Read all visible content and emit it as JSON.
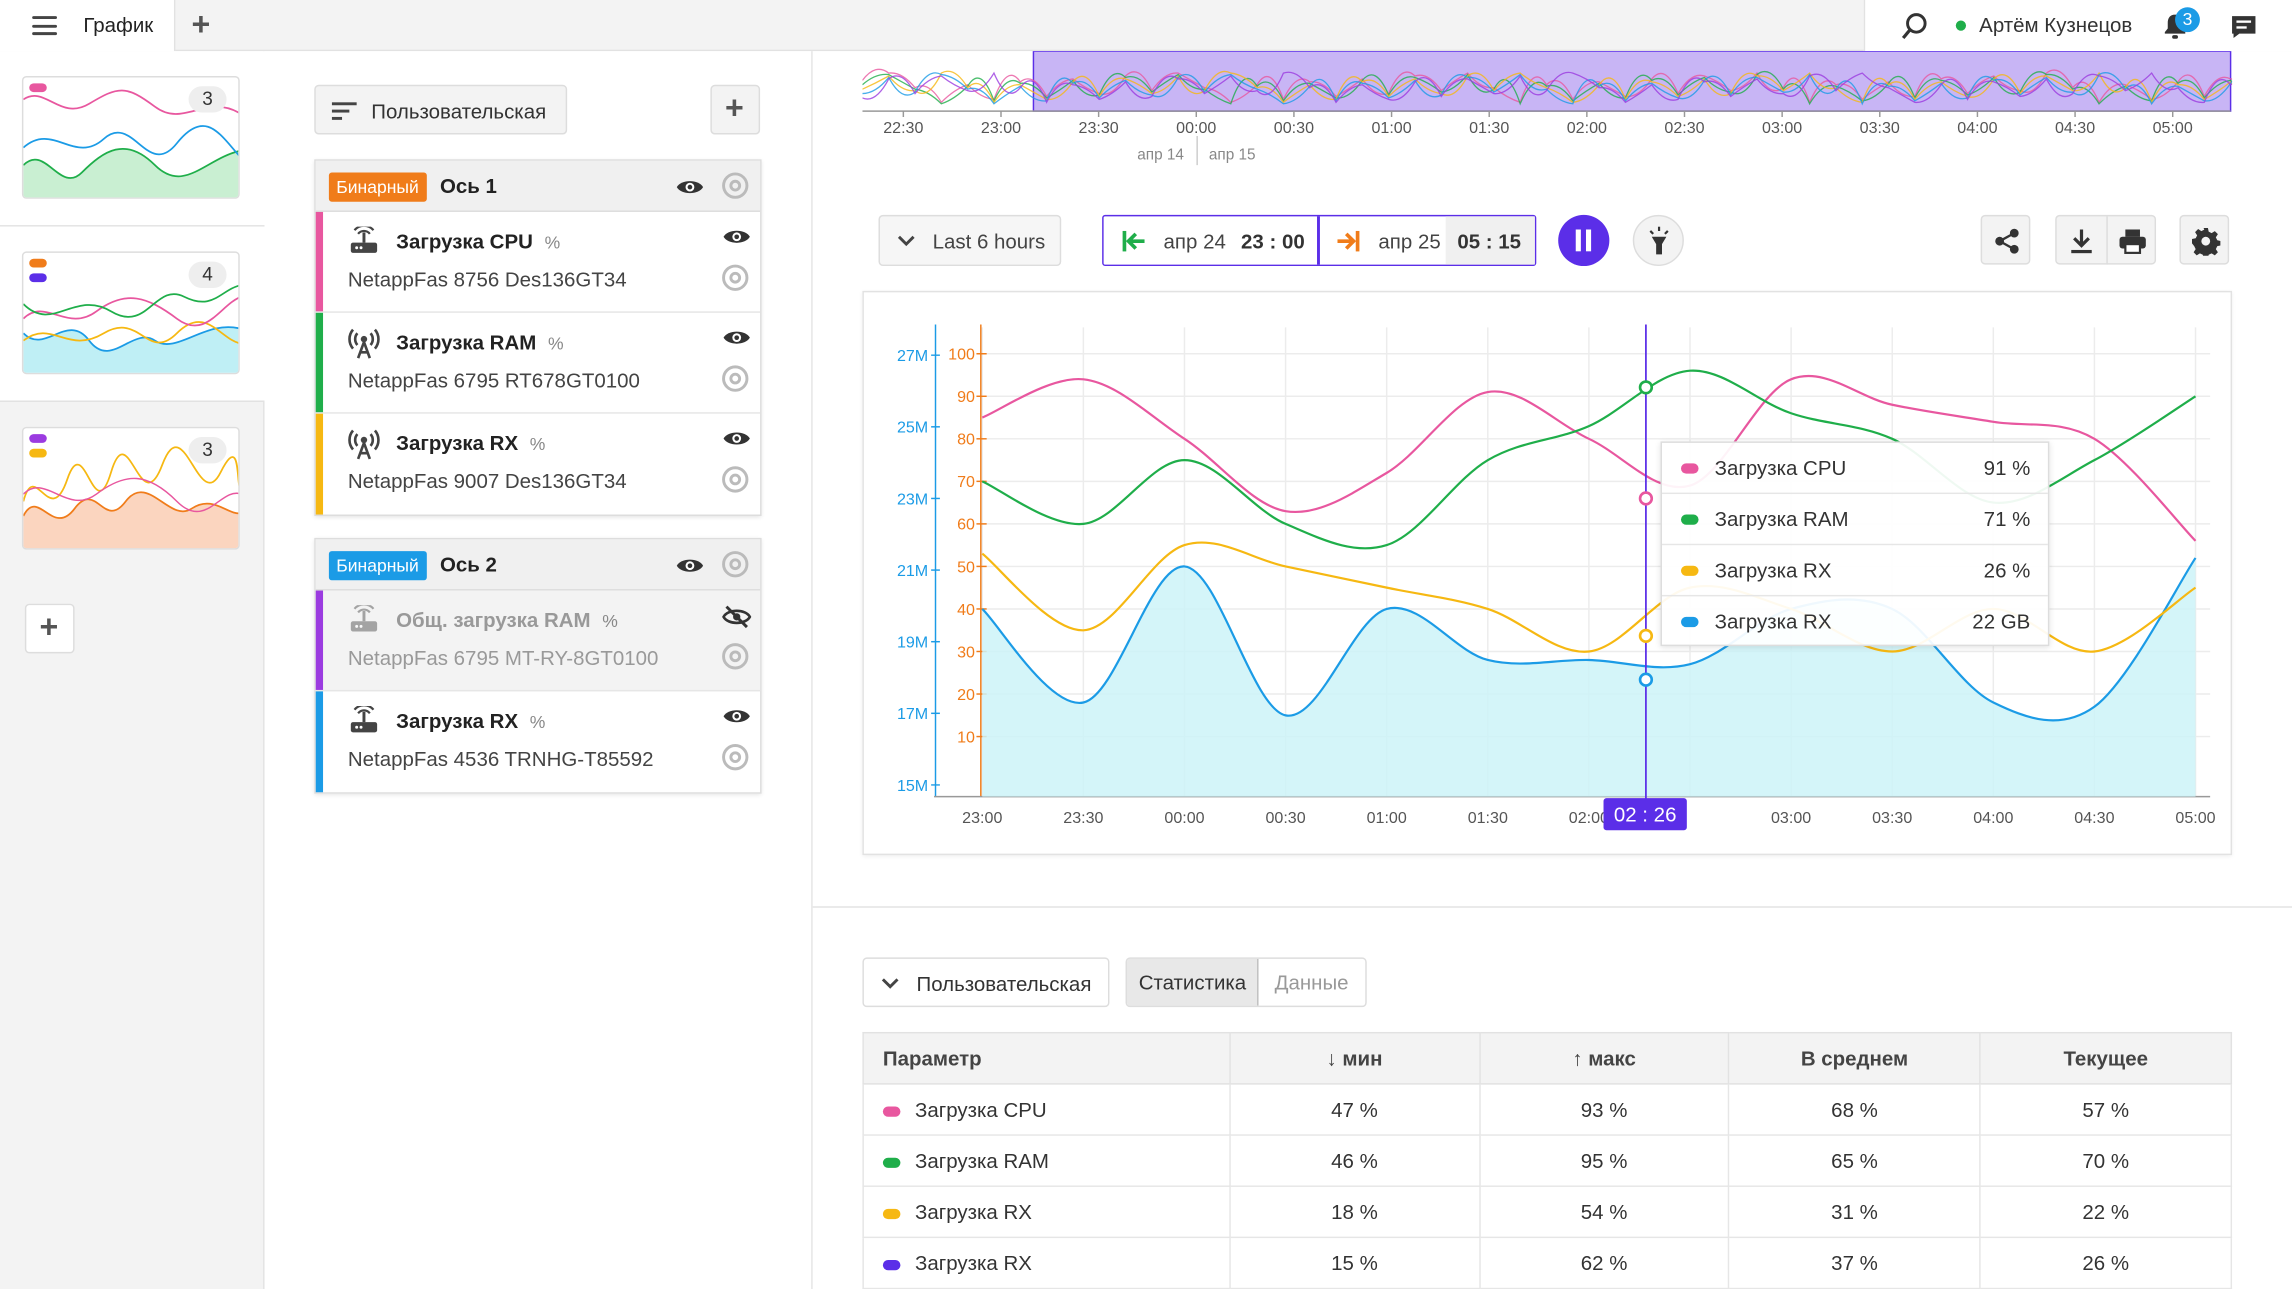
{
  "header": {
    "tab_title": "График",
    "user_name": "Артём Кузнецов",
    "notifications": "3"
  },
  "thumbs": [
    {
      "count": "3"
    },
    {
      "count": "4"
    },
    {
      "count": "3"
    }
  ],
  "legend_panel": {
    "preset_label": "Пользовательская"
  },
  "axes": [
    {
      "badge": "Бинарный",
      "badge_color": "#f07c1a",
      "title": "Ось 1",
      "items": [
        {
          "name": "Загрузка CPU",
          "unit": "%",
          "source": "NetappFas 8756 Des136GT34",
          "color": "#e8579f",
          "icon": "router-icon",
          "visible": true
        },
        {
          "name": "Загрузка RAM",
          "unit": "%",
          "source": "NetappFas 6795 RT678GT0100",
          "color": "#1fae4a",
          "icon": "antenna-icon",
          "visible": true
        },
        {
          "name": "Загрузка RX",
          "unit": "%",
          "source": "NetappFas 9007 Des136GT34",
          "color": "#f6b812",
          "icon": "antenna-icon",
          "visible": true
        }
      ]
    },
    {
      "badge": "Бинарный",
      "badge_color": "#1b9be6",
      "title": "Ось 2",
      "items": [
        {
          "name": "Общ. загрузка RAM",
          "unit": "%",
          "source": "NetappFas 6795 MT-RY-8GT0100",
          "color": "#9b3be0",
          "icon": "router-icon",
          "visible": false
        },
        {
          "name": "Загрузка RX",
          "unit": "%",
          "source": "NetappFas 4536 TRNHG-T85592",
          "color": "#1b9be6",
          "icon": "router-icon",
          "visible": true
        }
      ]
    }
  ],
  "overview": {
    "ticks": [
      "22:30",
      "23:00",
      "23:30",
      "00:00",
      "00:30",
      "01:00",
      "01:30",
      "02:00",
      "02:30",
      "03:00",
      "03:30",
      "04:00",
      "04:30",
      "05:00"
    ],
    "date_left": "апр 14",
    "date_right": "апр 15"
  },
  "controls": {
    "range_label": "Last 6 hours",
    "from_date": "апр 24",
    "from_time": "23 : 00",
    "to_date": "апр 25",
    "to_time": "05 : 15",
    "accent": "#5b2ee8"
  },
  "chart_data": {
    "type": "line",
    "x": [
      "23:00",
      "23:30",
      "00:00",
      "00:30",
      "01:00",
      "01:30",
      "02:00",
      "02:30",
      "03:00",
      "03:30",
      "04:00",
      "04:30",
      "05:00"
    ],
    "left_axis_outer": {
      "ticks": [
        "27M",
        "25M",
        "23M",
        "21M",
        "19M",
        "17M",
        "15M"
      ],
      "color": "#1b9be6"
    },
    "left_axis_inner": {
      "ticks": [
        "100",
        "90",
        "80",
        "70",
        "60",
        "50",
        "40",
        "30",
        "20",
        "10"
      ],
      "color": "#f07c1a",
      "ylim": [
        0,
        100
      ]
    },
    "series": [
      {
        "name": "Загрузка CPU",
        "color": "#e8579f",
        "values": [
          85,
          94,
          80,
          63,
          72,
          91,
          80,
          69,
          94,
          88,
          84,
          80,
          56
        ]
      },
      {
        "name": "Загрузка RAM",
        "color": "#1fae4a",
        "values": [
          70,
          60,
          75,
          60,
          55,
          75,
          83,
          96,
          86,
          80,
          65,
          75,
          90
        ]
      },
      {
        "name": "Загрузка RX",
        "color": "#f6b812",
        "values": [
          53,
          35,
          55,
          50,
          45,
          40,
          30,
          45,
          40,
          30,
          40,
          30,
          45
        ]
      },
      {
        "name": "Загрузка RX",
        "color": "#1b9be6",
        "values": [
          40,
          18,
          50,
          15,
          40,
          28,
          28,
          27,
          40,
          40,
          18,
          17,
          52
        ]
      }
    ],
    "cursor": {
      "label": "02 : 26",
      "x": "02:26"
    },
    "tooltip": [
      {
        "name": "Загрузка CPU",
        "value": "91 %",
        "color": "#e8579f"
      },
      {
        "name": "Загрузка RAM",
        "value": "71 %",
        "color": "#1fae4a"
      },
      {
        "name": "Загрузка RX",
        "value": "26 %",
        "color": "#f6b812"
      },
      {
        "name": "Загрузка RX",
        "value": "22 GB",
        "color": "#1b9be6"
      }
    ]
  },
  "stats": {
    "preset": "Пользовательская",
    "tab_stats": "Статистика",
    "tab_data": "Данные",
    "headers": [
      "Параметр",
      "мин",
      "макс",
      "В среднем",
      "Текущее"
    ],
    "rows": [
      {
        "name": "Загрузка CPU",
        "color": "#e8579f",
        "min": "47 %",
        "max": "93 %",
        "avg": "68 %",
        "cur": "57 %"
      },
      {
        "name": "Загрузка RAM",
        "color": "#1fae4a",
        "min": "46 %",
        "max": "95 %",
        "avg": "65 %",
        "cur": "70 %"
      },
      {
        "name": "Загрузка RX",
        "color": "#f6b812",
        "min": "18 %",
        "max": "54 %",
        "avg": "31 %",
        "cur": "22 %"
      },
      {
        "name": "Загрузка RX",
        "color": "#5b2ee8",
        "min": "15 %",
        "max": "62 %",
        "avg": "37 %",
        "cur": "26 %"
      }
    ]
  }
}
